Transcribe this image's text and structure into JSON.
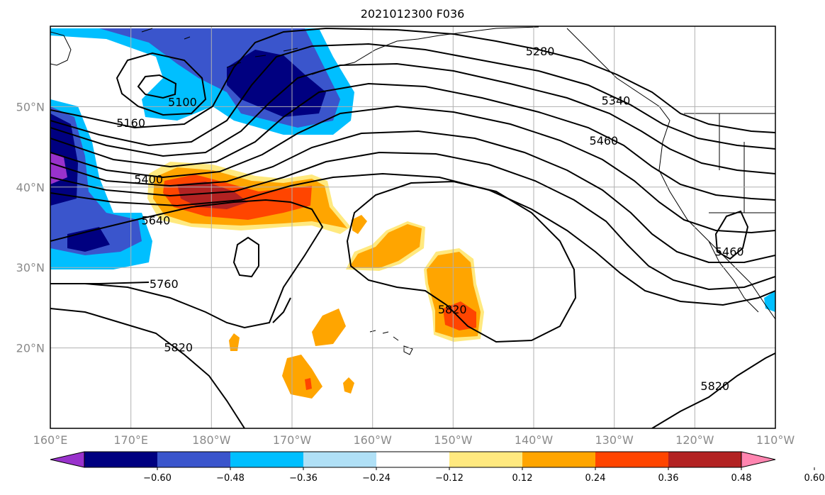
{
  "title": "2021012300 F036",
  "map": {
    "lon_range": [
      160,
      250
    ],
    "lat_range": [
      10,
      60
    ],
    "lat_ticks": [
      {
        "value": 20,
        "label": "20°N"
      },
      {
        "value": 30,
        "label": "30°N"
      },
      {
        "value": 40,
        "label": "40°N"
      },
      {
        "value": 50,
        "label": "50°N"
      }
    ],
    "lon_ticks": [
      {
        "value": 160,
        "label": "160°E"
      },
      {
        "value": 170,
        "label": "170°E"
      },
      {
        "value": 180,
        "label": "180°W"
      },
      {
        "value": 190,
        "label": "170°W"
      },
      {
        "value": 200,
        "label": "160°W"
      },
      {
        "value": 210,
        "label": "150°W"
      },
      {
        "value": 220,
        "label": "140°W"
      },
      {
        "value": 230,
        "label": "130°W"
      },
      {
        "value": 240,
        "label": "120°W"
      },
      {
        "value": 250,
        "label": "110°W"
      }
    ],
    "grid": true
  },
  "contour_labels": [
    {
      "text": "5100",
      "lon": 176.4,
      "lat": 50.6
    },
    {
      "text": "5160",
      "lon": 170.0,
      "lat": 48.0
    },
    {
      "text": "5280",
      "lon": 220.8,
      "lat": 56.9
    },
    {
      "text": "5340",
      "lon": 230.2,
      "lat": 50.8
    },
    {
      "text": "5460",
      "lon": 228.7,
      "lat": 45.8
    },
    {
      "text": "5400",
      "lon": 172.2,
      "lat": 41.0
    },
    {
      "text": "5640",
      "lon": 173.1,
      "lat": 35.9
    },
    {
      "text": "5760",
      "lon": 174.1,
      "lat": 28.0
    },
    {
      "text": "5460",
      "lon": 244.3,
      "lat": 32.0
    },
    {
      "text": "5820",
      "lon": 209.9,
      "lat": 24.8
    },
    {
      "text": "5820",
      "lon": 175.9,
      "lat": 20.1
    },
    {
      "text": "5820",
      "lon": 242.5,
      "lat": 15.3
    }
  ],
  "colorbar": {
    "colors": [
      "#9932cc",
      "#000080",
      "#3a55cc",
      "#00bfff",
      "#b0e0f6",
      "#ffffff",
      "#ffe97f",
      "#ffa500",
      "#ff4500",
      "#b22222",
      "#ff85b0"
    ],
    "labels": [
      "−0.60",
      "−0.48",
      "−0.36",
      "−0.24",
      "−0.12",
      "0.12",
      "0.24",
      "0.36",
      "0.48",
      "0.60"
    ]
  }
}
